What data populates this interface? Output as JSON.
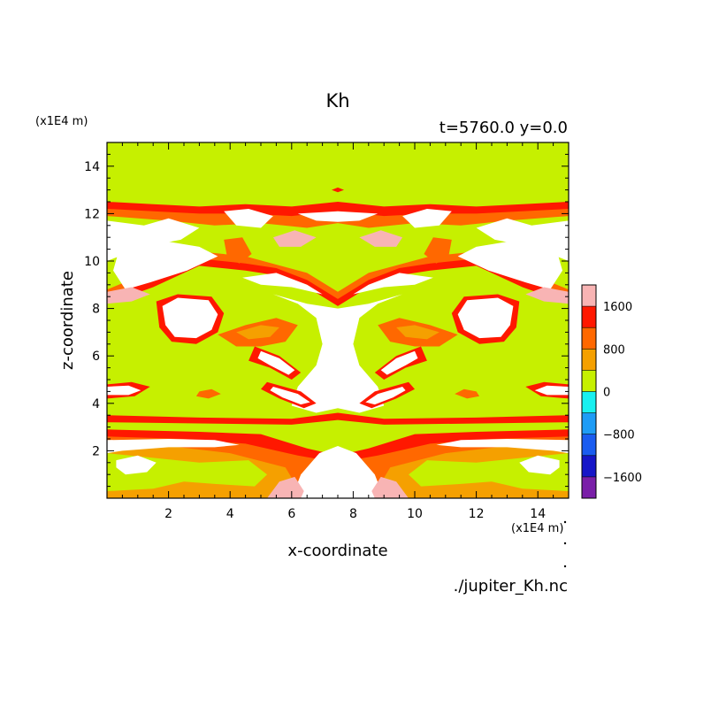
{
  "chart_data": {
    "type": "heatmap",
    "title": "Kh",
    "subtitle": "t=5760.0 y=0.0",
    "xlabel": "x-coordinate",
    "ylabel": "z-coordinate",
    "x_unit_label": "(x1E4 m)",
    "y_unit_label": "(x1E4 m)",
    "file_label": "./jupiter_Kh.nc",
    "xlim": [
      0,
      15
    ],
    "ylim": [
      0,
      15
    ],
    "x_ticks": [
      2,
      4,
      6,
      8,
      10,
      12,
      14
    ],
    "y_ticks": [
      2,
      4,
      6,
      8,
      10,
      12,
      14
    ],
    "x_tick_labels": [
      "2",
      "4",
      "6",
      "8",
      "10",
      "12",
      "14"
    ],
    "y_tick_labels": [
      "2",
      "4",
      "6",
      "8",
      "10",
      "12",
      "14"
    ],
    "grid": false,
    "colorbar": {
      "placement": "right",
      "levels": [
        -2000,
        -1600,
        -1200,
        -800,
        -400,
        0,
        400,
        800,
        1200,
        1600,
        2000
      ],
      "colors": [
        "#7a1fa8",
        "#1616c8",
        "#1a5cf0",
        "#1e9cf6",
        "#18f0f0",
        "#c6f000",
        "#f5a000",
        "#ff6800",
        "#ff1800",
        "#f8b4b4"
      ],
      "tick_values": [
        -1600,
        -800,
        0,
        800,
        1600
      ],
      "tick_labels": [
        "−1600",
        "−800",
        "0",
        "800",
        "1600"
      ]
    },
    "field_regions": {
      "background_band": "0 to 400",
      "above_2000": "white",
      "description_levels": "dominant value range 0–400 with layered bands of 400–2000 and values above 2000 between z≈0–12.5"
    }
  },
  "colors": {
    "background": "#ffffff",
    "field_base": "#c6f000",
    "high_white": "#ffffff"
  }
}
